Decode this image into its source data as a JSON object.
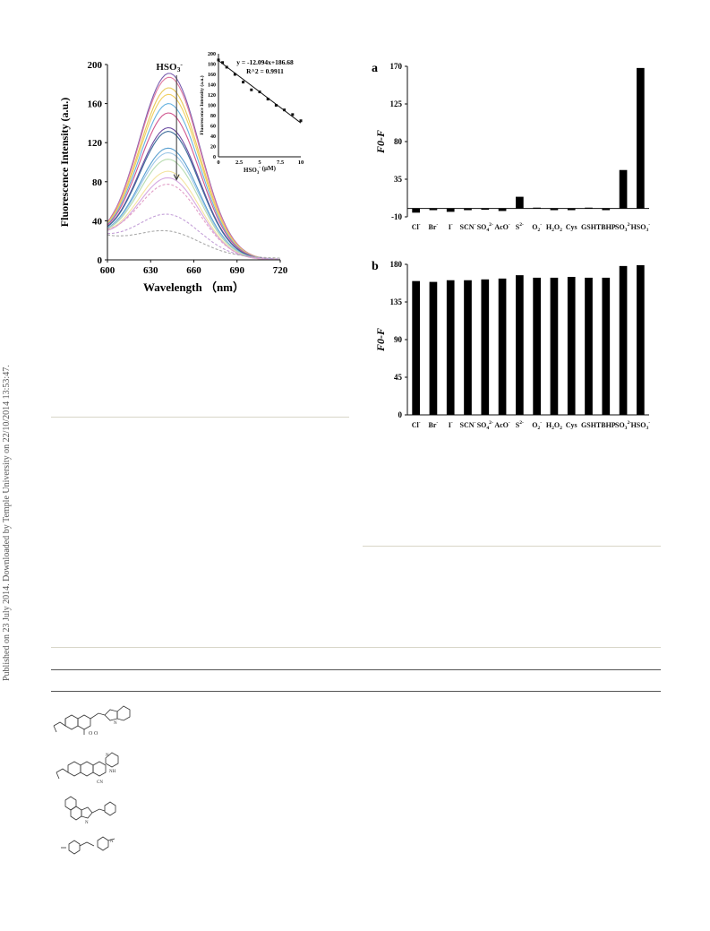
{
  "sidebar_note": "Published on 23 July 2014. Downloaded by Temple University on 22/10/2014 13:53:47.",
  "colors": {
    "curves": [
      "#7b5fb0",
      "#e07aa0",
      "#e8c95a",
      "#f0d060",
      "#67b3e0",
      "#d0578f",
      "#6a4aa0",
      "#3c6c9a",
      "#5aa0d0",
      "#9ec8e8",
      "#b8dcb0",
      "#f4e4a0",
      "#d6a8e0",
      "#e2a0c8",
      "#c4a0d8",
      "#aaaaaa"
    ],
    "bars": "#000000",
    "rule": "#d8d6c8"
  },
  "chart_data": [
    {
      "type": "line",
      "panel": "emission-spectra",
      "xlabel": "Wavelength （nm）",
      "ylabel": "Fluorescence Intensity (a.u.)",
      "annotation": "HSO3-",
      "annotation_parts": {
        "base": "HSO",
        "sub": "3",
        "sup": "-"
      },
      "xlim": [
        600,
        720
      ],
      "ylim": [
        0,
        200
      ],
      "xticks": [
        600,
        630,
        660,
        690,
        720
      ],
      "yticks": [
        0,
        40,
        80,
        120,
        160,
        200
      ],
      "peak_x": 643,
      "series_peaks": [
        190,
        186,
        175,
        168,
        158,
        148,
        132,
        128,
        110,
        105,
        98,
        85,
        78,
        70,
        38,
        20
      ]
    },
    {
      "type": "scatter",
      "panel": "inset-linear-fit",
      "xlabel": "HSO3- (μM)",
      "xlabel_parts": {
        "base": "HSO",
        "sub": "3",
        "sup": "-",
        "unit": " (μM)"
      },
      "ylabel": "Fluorescence Intensity (a.u.)",
      "equation": "y = -12.094x+186.68",
      "r2": "R^2 = 0.9911",
      "xlim": [
        0,
        10
      ],
      "ylim": [
        0,
        200
      ],
      "xticks": [
        "0",
        "2.5",
        "5",
        "7.5",
        "10"
      ],
      "yticks": [
        "0",
        "20",
        "40",
        "60",
        "80",
        "100",
        "120",
        "140",
        "160",
        "180",
        "200"
      ],
      "x": [
        0,
        0.5,
        1,
        2,
        3,
        4,
        5,
        6,
        7,
        8,
        9,
        10
      ],
      "y": [
        188,
        183,
        174,
        160,
        145,
        130,
        126,
        112,
        100,
        91,
        82,
        70
      ],
      "fit": {
        "slope": -12.094,
        "intercept": 186.68
      }
    },
    {
      "type": "bar",
      "panel": "a",
      "label": "a",
      "ylabel": "F0-F",
      "ylim": [
        -10,
        170
      ],
      "yticks": [
        -10,
        35,
        80,
        125,
        170
      ],
      "categories": [
        "Cl-",
        "Br-",
        "I-",
        "SCN-",
        "SO42-",
        "AcO-",
        "S2-",
        "O2-",
        "H2O2",
        "Cys",
        "GSH",
        "TBHP",
        "SO32-",
        "HSO3-"
      ],
      "values": [
        -5,
        -2,
        -4,
        -2,
        -1.5,
        -3,
        14,
        1,
        -2,
        -2,
        1,
        -2,
        46,
        168
      ]
    },
    {
      "type": "bar",
      "panel": "b",
      "label": "b",
      "ylabel": "F0-F",
      "ylim": [
        0,
        180
      ],
      "yticks": [
        0,
        45,
        90,
        135,
        180
      ],
      "categories": [
        "Cl-",
        "Br-",
        "I-",
        "SCN-",
        "SO42-",
        "AcO-",
        "S2-",
        "O2-",
        "H2O2",
        "Cys",
        "GSH",
        "TBHP",
        "SO32-",
        "HSO3-"
      ],
      "values": [
        160,
        159,
        161,
        161,
        162,
        163,
        167,
        164,
        164,
        165,
        164,
        164,
        178,
        179
      ]
    }
  ],
  "category_labels": [
    {
      "base": "Cl",
      "sup": "-"
    },
    {
      "base": "Br",
      "sup": "-"
    },
    {
      "base": "I",
      "sup": "-"
    },
    {
      "base": "SCN",
      "sup": "-"
    },
    {
      "base": "SO",
      "sub": "4",
      "sup": "2-"
    },
    {
      "base": "AcO",
      "sup": "-"
    },
    {
      "base": "S",
      "sup": "2-"
    },
    {
      "base": "O",
      "sub": "2",
      "sup": "-"
    },
    {
      "base": "H",
      "sub": "2",
      "tail": "O",
      "sub2": "2"
    },
    {
      "base": "Cys"
    },
    {
      "base": "GSH"
    },
    {
      "base": "TBHP"
    },
    {
      "base": "SO",
      "sub": "3",
      "sup": "2-"
    },
    {
      "base": "HSO",
      "sub": "3",
      "sup": "-"
    }
  ],
  "table_structures": [
    {
      "name": "coumarin-benzothiazole-probe"
    },
    {
      "name": "coumarin-quinoxaline-probe"
    },
    {
      "name": "benzoindolium-styryl-probe"
    },
    {
      "name": "aminostyryl-heterocycle-probe"
    }
  ]
}
